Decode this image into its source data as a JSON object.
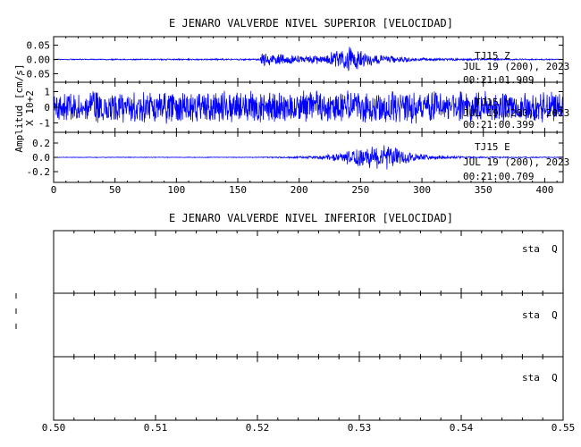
{
  "chart_data": [
    {
      "type": "line",
      "title": "E JENARO VALVERDE NIVEL SUPERIOR [VELOCIDAD]",
      "ylabel": "Amplitud [cm/s]",
      "ylabel2": "X 10+2",
      "xlim": [
        0,
        415
      ],
      "x_ticks": [
        0,
        50,
        100,
        150,
        200,
        250,
        300,
        350,
        400
      ],
      "x_tick_labels": [
        "0",
        "50",
        "100",
        "150",
        "200",
        "250",
        "300",
        "350",
        "400"
      ],
      "series_color": "#0000ff",
      "panels": [
        {
          "station": "TJ15",
          "component": "Z",
          "date": "JUL 19 (200), 2023",
          "time": "00:21:01.909",
          "ylim": [
            -0.08,
            0.08
          ],
          "y_ticks": [
            0.05,
            0.0,
            -0.05
          ],
          "y_tick_labels": [
            "0.05",
            "0.00",
            "-0.05"
          ],
          "envelope": {
            "t": [
              0,
              168,
              170,
              185,
              205,
              222,
              235,
              242,
              250,
              262,
              278,
              300,
              330,
              360,
              415
            ],
            "amplitude": [
              0.002,
              0.003,
              0.028,
              0.02,
              0.015,
              0.02,
              0.045,
              0.05,
              0.035,
              0.02,
              0.012,
              0.006,
              0.004,
              0.003,
              0.002
            ]
          }
        },
        {
          "station": "TJ15",
          "component": "N",
          "date": "JUL 19 (200), 2023",
          "time": "00:21:00.399",
          "ylim": [
            -1.6,
            1.6
          ],
          "y_ticks": [
            1,
            0,
            -1
          ],
          "y_tick_labels": [
            "1",
            "0",
            "-1"
          ],
          "envelope": {
            "t": [
              0,
              100,
              200,
              250,
              300,
              415
            ],
            "amplitude": [
              1.1,
              1.15,
              1.1,
              1.2,
              1.1,
              1.05
            ]
          }
        },
        {
          "station": "TJ15",
          "component": "E",
          "date": "JUL 19 (200), 2023",
          "time": "00:21:00.709",
          "ylim": [
            -0.35,
            0.35
          ],
          "y_ticks": [
            0.2,
            0.0,
            -0.2
          ],
          "y_tick_labels": [
            "0.2",
            "0.0",
            "-0.2"
          ],
          "envelope": {
            "t": [
              0,
              168,
              180,
              215,
              235,
              250,
              262,
              275,
              290,
              310,
              340,
              415
            ],
            "amplitude": [
              0.004,
              0.005,
              0.012,
              0.02,
              0.08,
              0.17,
              0.2,
              0.16,
              0.08,
              0.03,
              0.012,
              0.006
            ]
          }
        }
      ]
    },
    {
      "type": "line",
      "title": "E JENARO VALVERDE NIVEL INFERIOR [VELOCIDAD]",
      "xlim": [
        0.5,
        0.55
      ],
      "x_ticks": [
        0.5,
        0.51,
        0.52,
        0.53,
        0.54,
        0.55
      ],
      "x_tick_labels": [
        "0.50",
        "0.51",
        "0.52",
        "0.53",
        "0.54",
        "0.55"
      ],
      "panels": [
        {
          "label": "sta  Q"
        },
        {
          "label": "sta  Q"
        },
        {
          "label": "sta  Q"
        }
      ]
    }
  ]
}
